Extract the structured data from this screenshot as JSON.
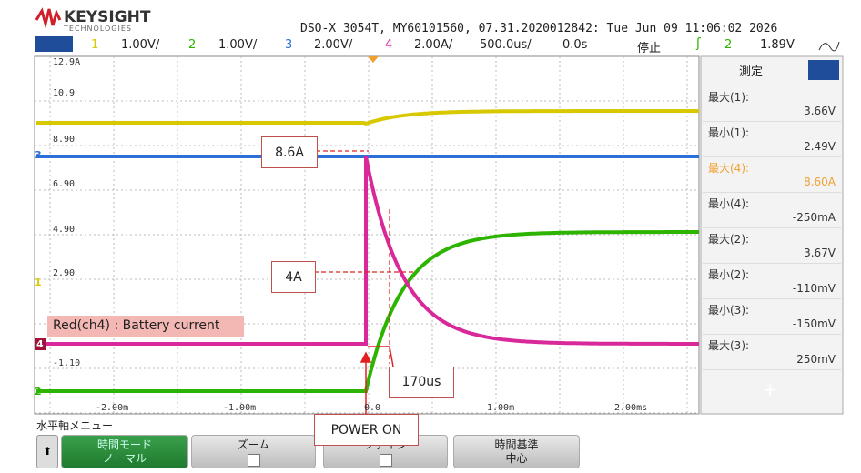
{
  "header": {
    "brand": "KEYSIGHT",
    "brand_sub": "TECHNOLOGIES",
    "title": "DSO-X 3054T, MY60101560, 07.31.2020012842: Tue Jun 09 11:06:02 2026"
  },
  "channels": [
    {
      "num": "1",
      "scale": "1.00V/",
      "color": "#d8c800"
    },
    {
      "num": "2",
      "scale": "1.00V/",
      "color": "#2db400"
    },
    {
      "num": "3",
      "scale": "2.00V/",
      "color": "#2c6fd8"
    },
    {
      "num": "4",
      "scale": "2.00A/",
      "color": "#d8289a"
    }
  ],
  "timebase": "500.0us/",
  "delay": "0.0s",
  "status": "停止",
  "trigger": {
    "source": "2",
    "level": "1.89V"
  },
  "graticule": {
    "y_labels": [
      "12.9A",
      "10.9",
      "8.90",
      "6.90",
      "4.90",
      "2.90",
      "-1.10"
    ],
    "x_labels": [
      "-2.00m",
      "-1.00m",
      "0.0",
      "1.00m",
      "2.00ms"
    ]
  },
  "channel_markers": [
    "3",
    "1",
    "4",
    "2"
  ],
  "measurements": {
    "title": "測定",
    "items": [
      {
        "label": "最大(1):",
        "value": "3.66V",
        "color": "#333"
      },
      {
        "label": "最小(1):",
        "value": "2.49V",
        "color": "#333"
      },
      {
        "label": "最大(4):",
        "value": "8.60A",
        "color": "#f0a030"
      },
      {
        "label": "最小(4):",
        "value": "-250mA",
        "color": "#333"
      },
      {
        "label": "最大(2):",
        "value": "3.67V",
        "color": "#333"
      },
      {
        "label": "最小(2):",
        "value": "-110mV",
        "color": "#333"
      },
      {
        "label": "最小(3):",
        "value": "-150mV",
        "color": "#333"
      },
      {
        "label": "最大(3):",
        "value": "250mV",
        "color": "#333"
      }
    ]
  },
  "annotations": {
    "peak": "8.6A",
    "cross": "4A",
    "legend": "Red(ch4) : Battery current",
    "delay": "170us",
    "power": "POWER ON"
  },
  "softkeys": {
    "menu_title": "水平軸メニュー",
    "keys": [
      {
        "line1": "時間モード",
        "line2": "ノーマル"
      },
      {
        "line1": "ズーム"
      },
      {
        "line1": "ファイン"
      },
      {
        "line1": "時間基準",
        "line2": "中心"
      }
    ]
  }
}
